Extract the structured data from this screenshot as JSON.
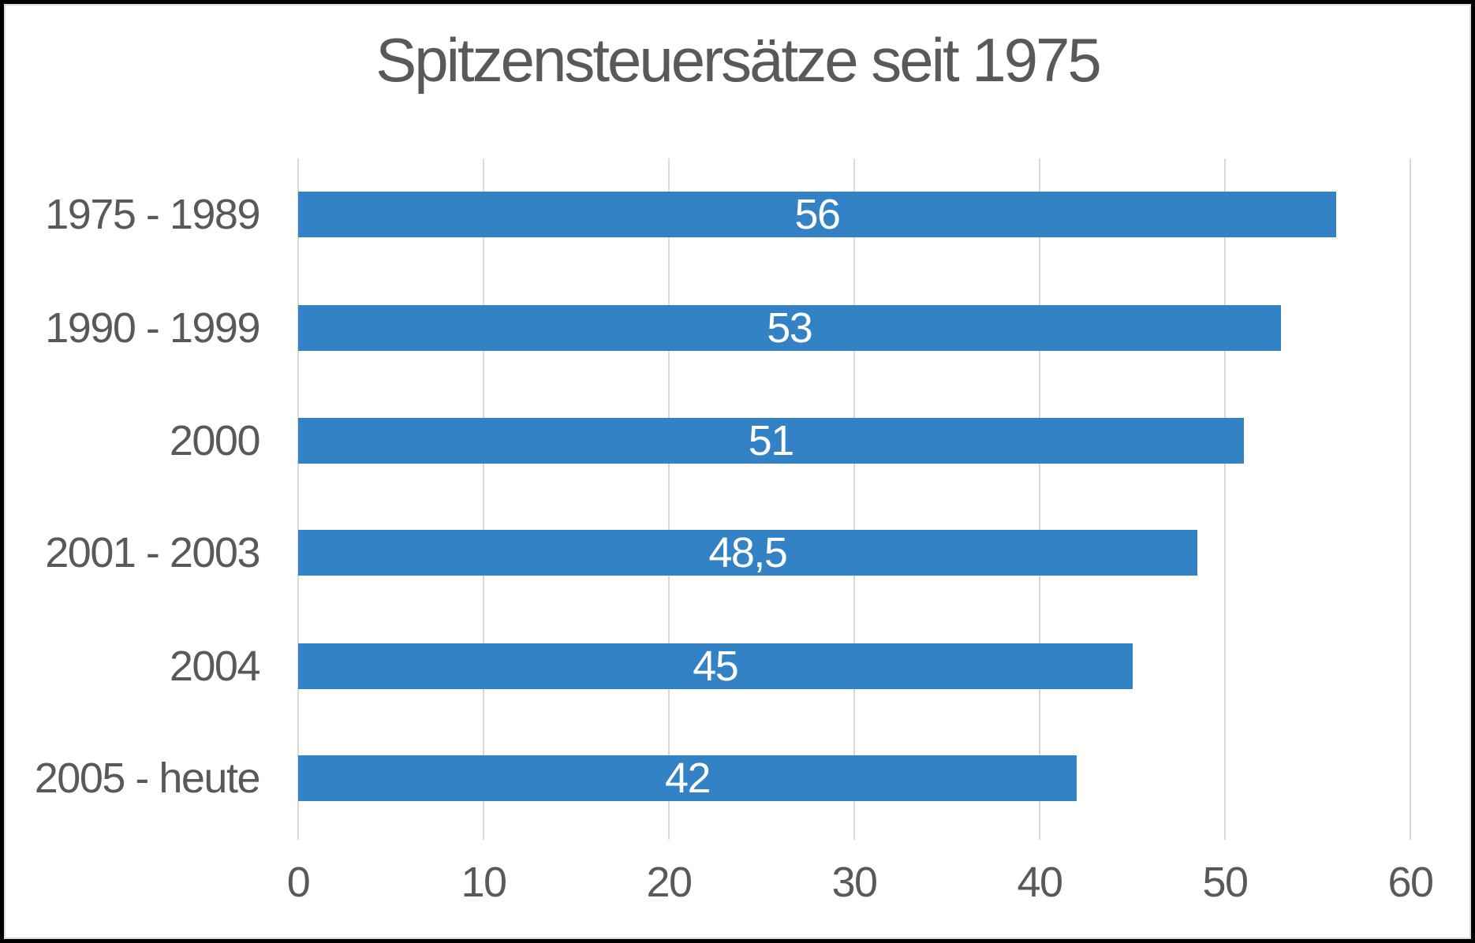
{
  "title": "Spitzensteuersätze seit 1975",
  "colors": {
    "bar": "#3482C6",
    "grid": "#D9D9D9",
    "text": "#595959",
    "value_label": "#FFFFFF",
    "frame": "#000000",
    "background": "#FFFFFF"
  },
  "chart_data": {
    "type": "bar",
    "orientation": "horizontal",
    "title": "Spitzensteuersätze seit 1975",
    "categories": [
      "1975 - 1989",
      "1990 - 1999",
      "2000",
      "2001 - 2003",
      "2004",
      "2005 - heute"
    ],
    "values": [
      56,
      53,
      51,
      48.5,
      45,
      42
    ],
    "value_labels": [
      "56",
      "53",
      "51",
      "48,5",
      "45",
      "42"
    ],
    "xlabel": "",
    "ylabel": "",
    "xlim": [
      0,
      60
    ],
    "x_ticks": [
      0,
      10,
      20,
      30,
      40,
      50,
      60
    ],
    "grid": true,
    "legend": false,
    "value_label_position": "center",
    "bar_color": "#3482C6"
  }
}
